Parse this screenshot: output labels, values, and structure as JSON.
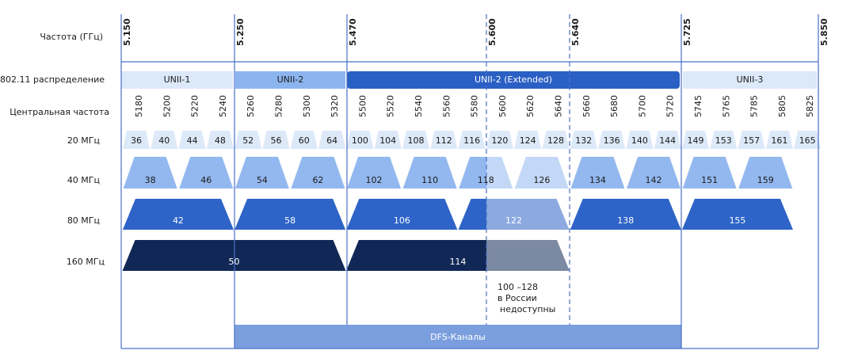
{
  "row_labels": [
    "Частота (ГГц)",
    "802.11 распределение",
    "Центральная частота",
    "20 МГц",
    "40 МГц",
    "80 МГц",
    "160 МГц"
  ],
  "frequencies": [
    "5.150",
    "5.250",
    "5.470",
    "5.600",
    "5.640",
    "5.725",
    "5.850"
  ],
  "allocation": [
    "UNII-1",
    "UNII-2",
    "UNII-2 (Extended)",
    "UNII-3"
  ],
  "center_frequencies": [
    5180,
    5200,
    5220,
    5240,
    5260,
    5280,
    5300,
    5320,
    5500,
    5520,
    5540,
    5560,
    5580,
    5600,
    5620,
    5640,
    5660,
    5680,
    5700,
    5720,
    5745,
    5765,
    5785,
    5805,
    5825
  ],
  "channels_20": [
    36,
    40,
    44,
    48,
    52,
    56,
    60,
    64,
    100,
    104,
    108,
    112,
    116,
    120,
    124,
    128,
    132,
    136,
    140,
    144,
    149,
    153,
    157,
    161,
    165
  ],
  "channels_40": [
    38,
    46,
    54,
    62,
    102,
    110,
    118,
    126,
    134,
    142,
    151,
    159
  ],
  "channels_80": [
    42,
    58,
    106,
    122,
    138,
    155
  ],
  "channels_160": [
    50,
    114
  ],
  "note": [
    "100 –128",
    "в России",
    "недоступны"
  ],
  "dfs_label": "DFS-Каналы"
}
